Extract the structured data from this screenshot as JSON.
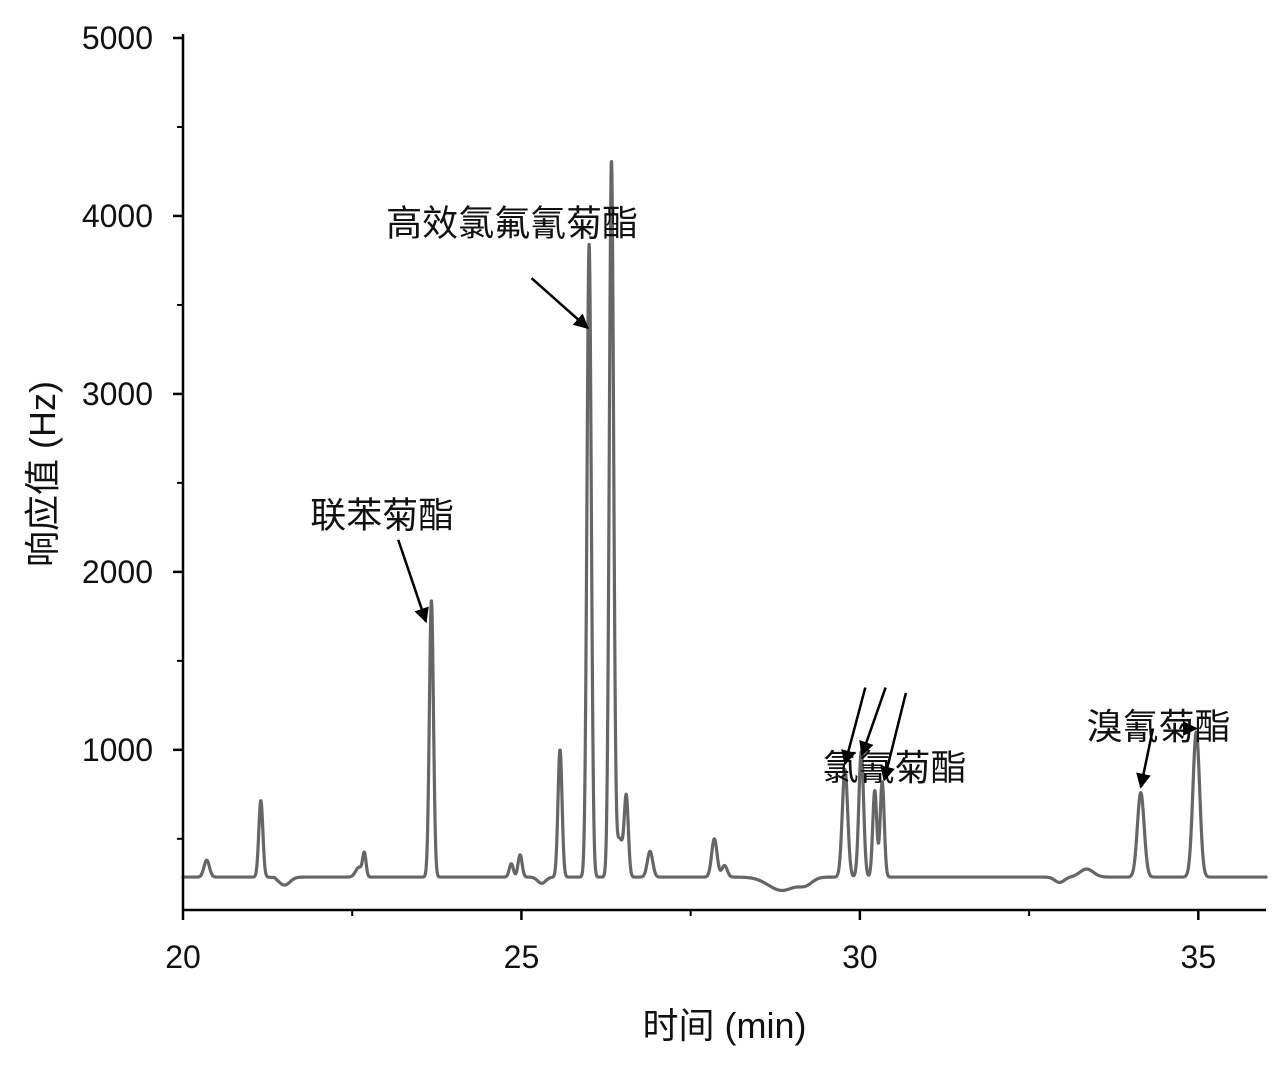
{
  "chart_data": {
    "type": "line",
    "xlabel": "时间 (min)",
    "ylabel": "响应值 (Hz)",
    "xlim": [
      20,
      36
    ],
    "ylim": [
      100,
      5000
    ],
    "x_ticks": [
      20,
      25,
      30,
      35
    ],
    "x_minor_ticks": [
      22.5,
      27.5,
      32.5
    ],
    "y_ticks": [
      1000,
      2000,
      3000,
      4000,
      5000
    ],
    "y_minor_ticks": [
      500,
      1500,
      2500,
      3500,
      4500
    ],
    "grid": false,
    "line_color": "#666666",
    "baseline": 285,
    "peaks": [
      {
        "x": 20.35,
        "h": 380,
        "w": 0.04
      },
      {
        "x": 21.15,
        "h": 715,
        "w": 0.03
      },
      {
        "x": 21.35,
        "h": 290,
        "w": 0.02
      },
      {
        "x": 22.6,
        "h": 340,
        "w": 0.05
      },
      {
        "x": 22.68,
        "h": 410,
        "w": 0.025
      },
      {
        "x": 23.67,
        "h": 1840,
        "w": 0.03
      },
      {
        "x": 24.85,
        "h": 360,
        "w": 0.03
      },
      {
        "x": 24.98,
        "h": 410,
        "w": 0.03
      },
      {
        "x": 25.57,
        "h": 1000,
        "w": 0.03
      },
      {
        "x": 26.0,
        "h": 3840,
        "w": 0.032
      },
      {
        "x": 26.33,
        "h": 4300,
        "w": 0.032
      },
      {
        "x": 26.45,
        "h": 500,
        "w": 0.05
      },
      {
        "x": 26.55,
        "h": 720,
        "w": 0.03
      },
      {
        "x": 26.9,
        "h": 430,
        "w": 0.04
      },
      {
        "x": 27.85,
        "h": 500,
        "w": 0.04
      },
      {
        "x": 28.0,
        "h": 350,
        "w": 0.04
      },
      {
        "x": 29.78,
        "h": 890,
        "w": 0.04
      },
      {
        "x": 30.02,
        "h": 990,
        "w": 0.035
      },
      {
        "x": 30.22,
        "h": 770,
        "w": 0.03
      },
      {
        "x": 30.33,
        "h": 820,
        "w": 0.03
      },
      {
        "x": 33.35,
        "h": 330,
        "w": 0.1
      },
      {
        "x": 34.15,
        "h": 760,
        "w": 0.05
      },
      {
        "x": 34.97,
        "h": 1100,
        "w": 0.05
      }
    ],
    "dips": [
      {
        "x": 21.5,
        "h": 240,
        "w": 0.08
      },
      {
        "x": 25.3,
        "h": 250,
        "w": 0.06
      },
      {
        "x": 28.85,
        "h": 210,
        "w": 0.2
      },
      {
        "x": 29.2,
        "h": 250,
        "w": 0.1
      },
      {
        "x": 32.95,
        "h": 255,
        "w": 0.07
      }
    ],
    "annotations": [
      {
        "text": "高效氯氟氰菊酯",
        "label_x": 23.0,
        "label_y": 3890,
        "arrows": [
          {
            "from": [
              25.15,
              3650
            ],
            "to": [
              25.98,
              3370
            ]
          }
        ]
      },
      {
        "text": "联苯菊酯",
        "label_x": 21.88,
        "label_y": 2250,
        "arrows": [
          {
            "from": [
              23.18,
              2180
            ],
            "to": [
              23.59,
              1720
            ]
          }
        ]
      },
      {
        "text": "氯氰菊酯",
        "label_x": 29.45,
        "label_y": 830,
        "arrows": [
          {
            "from": [
              30.08,
              1350
            ],
            "to": [
              29.78,
              920
            ]
          },
          {
            "from": [
              30.38,
              1350
            ],
            "to": [
              30.03,
              970
            ]
          },
          {
            "from": [
              30.68,
              1320
            ],
            "to": [
              30.36,
              830
            ]
          }
        ]
      },
      {
        "text": "溴氰菊酯",
        "label_x": 33.35,
        "label_y": 1060,
        "arrows": [
          {
            "from": [
              34.33,
              1120
            ],
            "to": [
              34.15,
              790
            ]
          },
          {
            "from": [
              34.83,
              1120
            ],
            "to": [
              34.97,
              1120
            ]
          }
        ]
      }
    ]
  }
}
